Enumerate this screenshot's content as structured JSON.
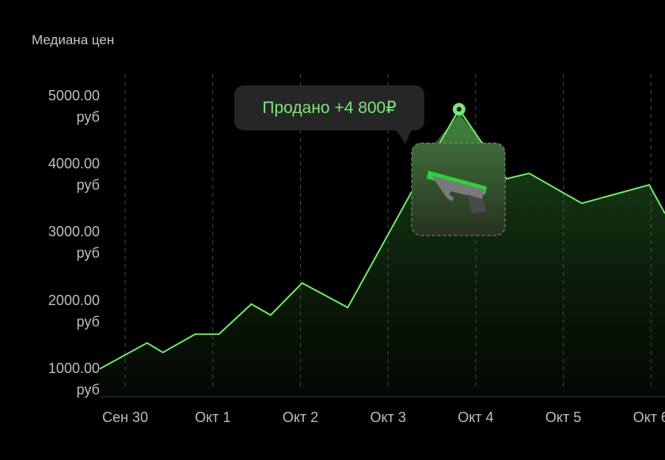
{
  "chart_data": {
    "type": "area",
    "title": "Медиана цен",
    "x": [
      -0.29,
      0.25,
      0.43,
      0.8,
      1.07,
      1.44,
      1.66,
      2.02,
      2.54,
      3.27,
      3.81,
      4.35,
      4.61,
      5.21,
      5.98,
      6.16
    ],
    "values": [
      990,
      1370,
      1230,
      1500,
      1500,
      1940,
      1780,
      2250,
      1890,
      3590,
      4800,
      3780,
      3860,
      3420,
      3690,
      3270
    ],
    "color": "#72e86c",
    "xlim": [
      -0.29,
      6.16
    ],
    "xticks": [
      {
        "value": 0,
        "label": "Сен 30"
      },
      {
        "value": 1,
        "label": "Окт 1"
      },
      {
        "value": 2,
        "label": "Окт 2"
      },
      {
        "value": 3,
        "label": "Окт 3"
      },
      {
        "value": 4,
        "label": "Окт 4"
      },
      {
        "value": 5,
        "label": "Окт 5"
      },
      {
        "value": 6,
        "label": "Окт 6"
      }
    ],
    "ylim": [
      580,
      5360
    ],
    "yticks": [
      {
        "value": 1000,
        "label": "1000.00 руб"
      },
      {
        "value": 2000,
        "label": "2000.00 руб"
      },
      {
        "value": 3000,
        "label": "3000.00 руб"
      },
      {
        "value": 4000,
        "label": "4000.00 руб"
      },
      {
        "value": 5000,
        "label": "5000.00 руб"
      }
    ],
    "annotation": "Продано +4 800₽",
    "highlight_index": 10
  }
}
